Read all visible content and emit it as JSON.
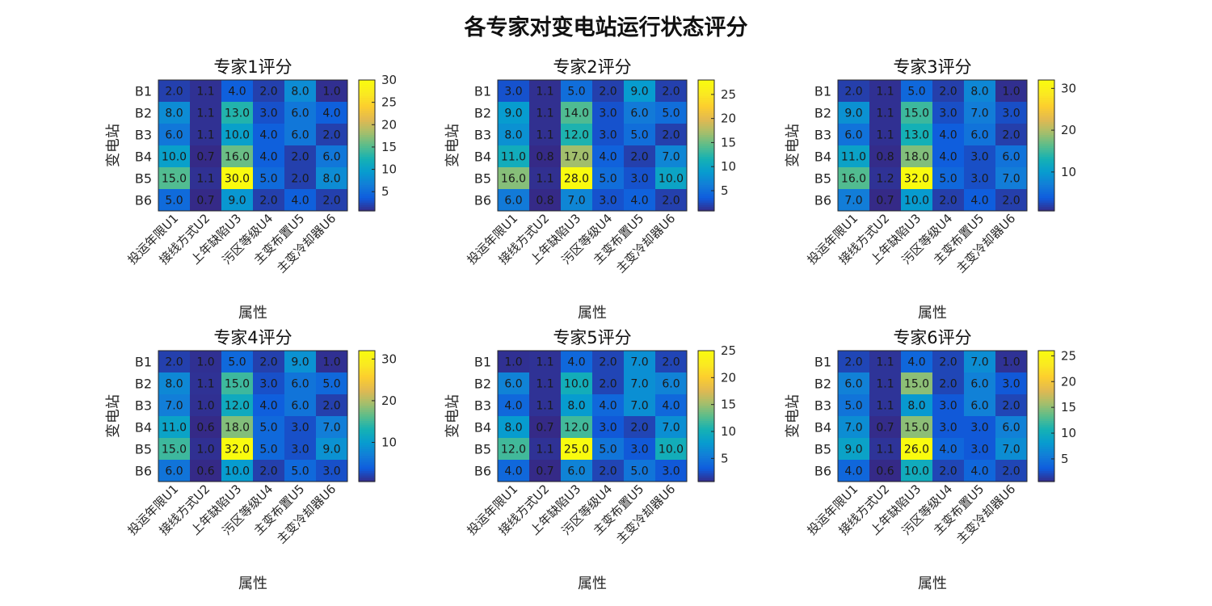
{
  "figure": {
    "title": "各专家对变电站运行状态评分"
  },
  "chart_data": [
    {
      "type": "heatmap",
      "title": "专家1评分",
      "xlabel": "属性",
      "ylabel": "变电站",
      "x_categories": [
        "投运年限U1",
        "接线方式U2",
        "上年缺陷U3",
        "污区等级U4",
        "主变布置U5",
        "主变冷却器U6"
      ],
      "y_categories": [
        "B1",
        "B2",
        "B3",
        "B4",
        "B5",
        "B6"
      ],
      "values": [
        [
          2.0,
          1.1,
          4.0,
          2.0,
          8.0,
          1.0
        ],
        [
          8.0,
          1.1,
          13.0,
          3.0,
          6.0,
          4.0
        ],
        [
          6.0,
          1.1,
          10.0,
          4.0,
          6.0,
          2.0
        ],
        [
          10.0,
          0.7,
          16.0,
          4.0,
          2.0,
          6.0
        ],
        [
          15.0,
          1.1,
          30.0,
          5.0,
          2.0,
          8.0
        ],
        [
          5.0,
          0.7,
          9.0,
          2.0,
          4.0,
          2.0
        ]
      ],
      "colorbar_ticks": [
        5,
        10,
        15,
        20,
        25,
        30
      ],
      "colormap": "parula"
    },
    {
      "type": "heatmap",
      "title": "专家2评分",
      "xlabel": "属性",
      "ylabel": "变电站",
      "x_categories": [
        "投运年限U1",
        "接线方式U2",
        "上年缺陷U3",
        "污区等级U4",
        "主变布置U5",
        "主变冷却器U6"
      ],
      "y_categories": [
        "B1",
        "B2",
        "B3",
        "B4",
        "B5",
        "B6"
      ],
      "values": [
        [
          3.0,
          1.1,
          5.0,
          2.0,
          9.0,
          2.0
        ],
        [
          9.0,
          1.1,
          14.0,
          3.0,
          6.0,
          5.0
        ],
        [
          8.0,
          1.1,
          12.0,
          3.0,
          5.0,
          2.0
        ],
        [
          11.0,
          0.8,
          17.0,
          4.0,
          2.0,
          7.0
        ],
        [
          16.0,
          1.1,
          28.0,
          5.0,
          3.0,
          10.0
        ],
        [
          6.0,
          0.8,
          7.0,
          3.0,
          4.0,
          2.0
        ]
      ],
      "colorbar_ticks": [
        5,
        10,
        15,
        20,
        25
      ],
      "colormap": "parula"
    },
    {
      "type": "heatmap",
      "title": "专家3评分",
      "xlabel": "属性",
      "ylabel": "变电站",
      "x_categories": [
        "投运年限U1",
        "接线方式U2",
        "上年缺陷U3",
        "污区等级U4",
        "主变布置U5",
        "主变冷却器U6"
      ],
      "y_categories": [
        "B1",
        "B2",
        "B3",
        "B4",
        "B5",
        "B6"
      ],
      "values": [
        [
          2.0,
          1.1,
          5.0,
          2.0,
          8.0,
          1.0
        ],
        [
          9.0,
          1.1,
          15.0,
          3.0,
          7.0,
          3.0
        ],
        [
          6.0,
          1.1,
          13.0,
          4.0,
          6.0,
          2.0
        ],
        [
          11.0,
          0.8,
          18.0,
          4.0,
          3.0,
          6.0
        ],
        [
          16.0,
          1.2,
          32.0,
          5.0,
          3.0,
          7.0
        ],
        [
          7.0,
          0.7,
          10.0,
          2.0,
          4.0,
          2.0
        ]
      ],
      "colorbar_ticks": [
        10,
        20,
        30
      ],
      "colormap": "parula"
    },
    {
      "type": "heatmap",
      "title": "专家4评分",
      "xlabel": "属性",
      "ylabel": "变电站",
      "x_categories": [
        "投运年限U1",
        "接线方式U2",
        "上年缺陷U3",
        "污区等级U4",
        "主变布置U5",
        "主变冷却器U6"
      ],
      "y_categories": [
        "B1",
        "B2",
        "B3",
        "B4",
        "B5",
        "B6"
      ],
      "values": [
        [
          2.0,
          1.0,
          5.0,
          2.0,
          9.0,
          1.0
        ],
        [
          8.0,
          1.1,
          15.0,
          3.0,
          6.0,
          5.0
        ],
        [
          7.0,
          1.0,
          12.0,
          4.0,
          6.0,
          2.0
        ],
        [
          11.0,
          0.6,
          18.0,
          5.0,
          3.0,
          7.0
        ],
        [
          15.0,
          1.0,
          32.0,
          5.0,
          3.0,
          9.0
        ],
        [
          6.0,
          0.6,
          10.0,
          2.0,
          5.0,
          3.0
        ]
      ],
      "colorbar_ticks": [
        10,
        20,
        30
      ],
      "colormap": "parula"
    },
    {
      "type": "heatmap",
      "title": "专家5评分",
      "xlabel": "属性",
      "ylabel": "变电站",
      "x_categories": [
        "投运年限U1",
        "接线方式U2",
        "上年缺陷U3",
        "污区等级U4",
        "主变布置U5",
        "主变冷却器U6"
      ],
      "y_categories": [
        "B1",
        "B2",
        "B3",
        "B4",
        "B5",
        "B6"
      ],
      "values": [
        [
          1.0,
          1.1,
          4.0,
          2.0,
          7.0,
          2.0
        ],
        [
          6.0,
          1.1,
          10.0,
          2.0,
          7.0,
          6.0
        ],
        [
          4.0,
          1.1,
          8.0,
          4.0,
          7.0,
          4.0
        ],
        [
          8.0,
          0.7,
          12.0,
          3.0,
          2.0,
          7.0
        ],
        [
          12.0,
          1.1,
          25.0,
          5.0,
          3.0,
          10.0
        ],
        [
          4.0,
          0.7,
          6.0,
          2.0,
          5.0,
          3.0
        ]
      ],
      "colorbar_ticks": [
        5,
        10,
        15,
        20,
        25
      ],
      "colormap": "parula"
    },
    {
      "type": "heatmap",
      "title": "专家6评分",
      "xlabel": "属性",
      "ylabel": "变电站",
      "x_categories": [
        "投运年限U1",
        "接线方式U2",
        "上年缺陷U3",
        "污区等级U4",
        "主变布置U5",
        "主变冷却器U6"
      ],
      "y_categories": [
        "B1",
        "B2",
        "B3",
        "B4",
        "B5",
        "B6"
      ],
      "values": [
        [
          2.0,
          1.1,
          4.0,
          2.0,
          7.0,
          1.0
        ],
        [
          6.0,
          1.1,
          15.0,
          2.0,
          6.0,
          3.0
        ],
        [
          5.0,
          1.1,
          8.0,
          3.0,
          6.0,
          2.0
        ],
        [
          7.0,
          0.7,
          15.0,
          3.0,
          3.0,
          6.0
        ],
        [
          9.0,
          1.1,
          26.0,
          4.0,
          3.0,
          7.0
        ],
        [
          4.0,
          0.6,
          10.0,
          2.0,
          4.0,
          2.0
        ]
      ],
      "colorbar_ticks": [
        5,
        10,
        15,
        20,
        25
      ],
      "colormap": "parula"
    }
  ]
}
